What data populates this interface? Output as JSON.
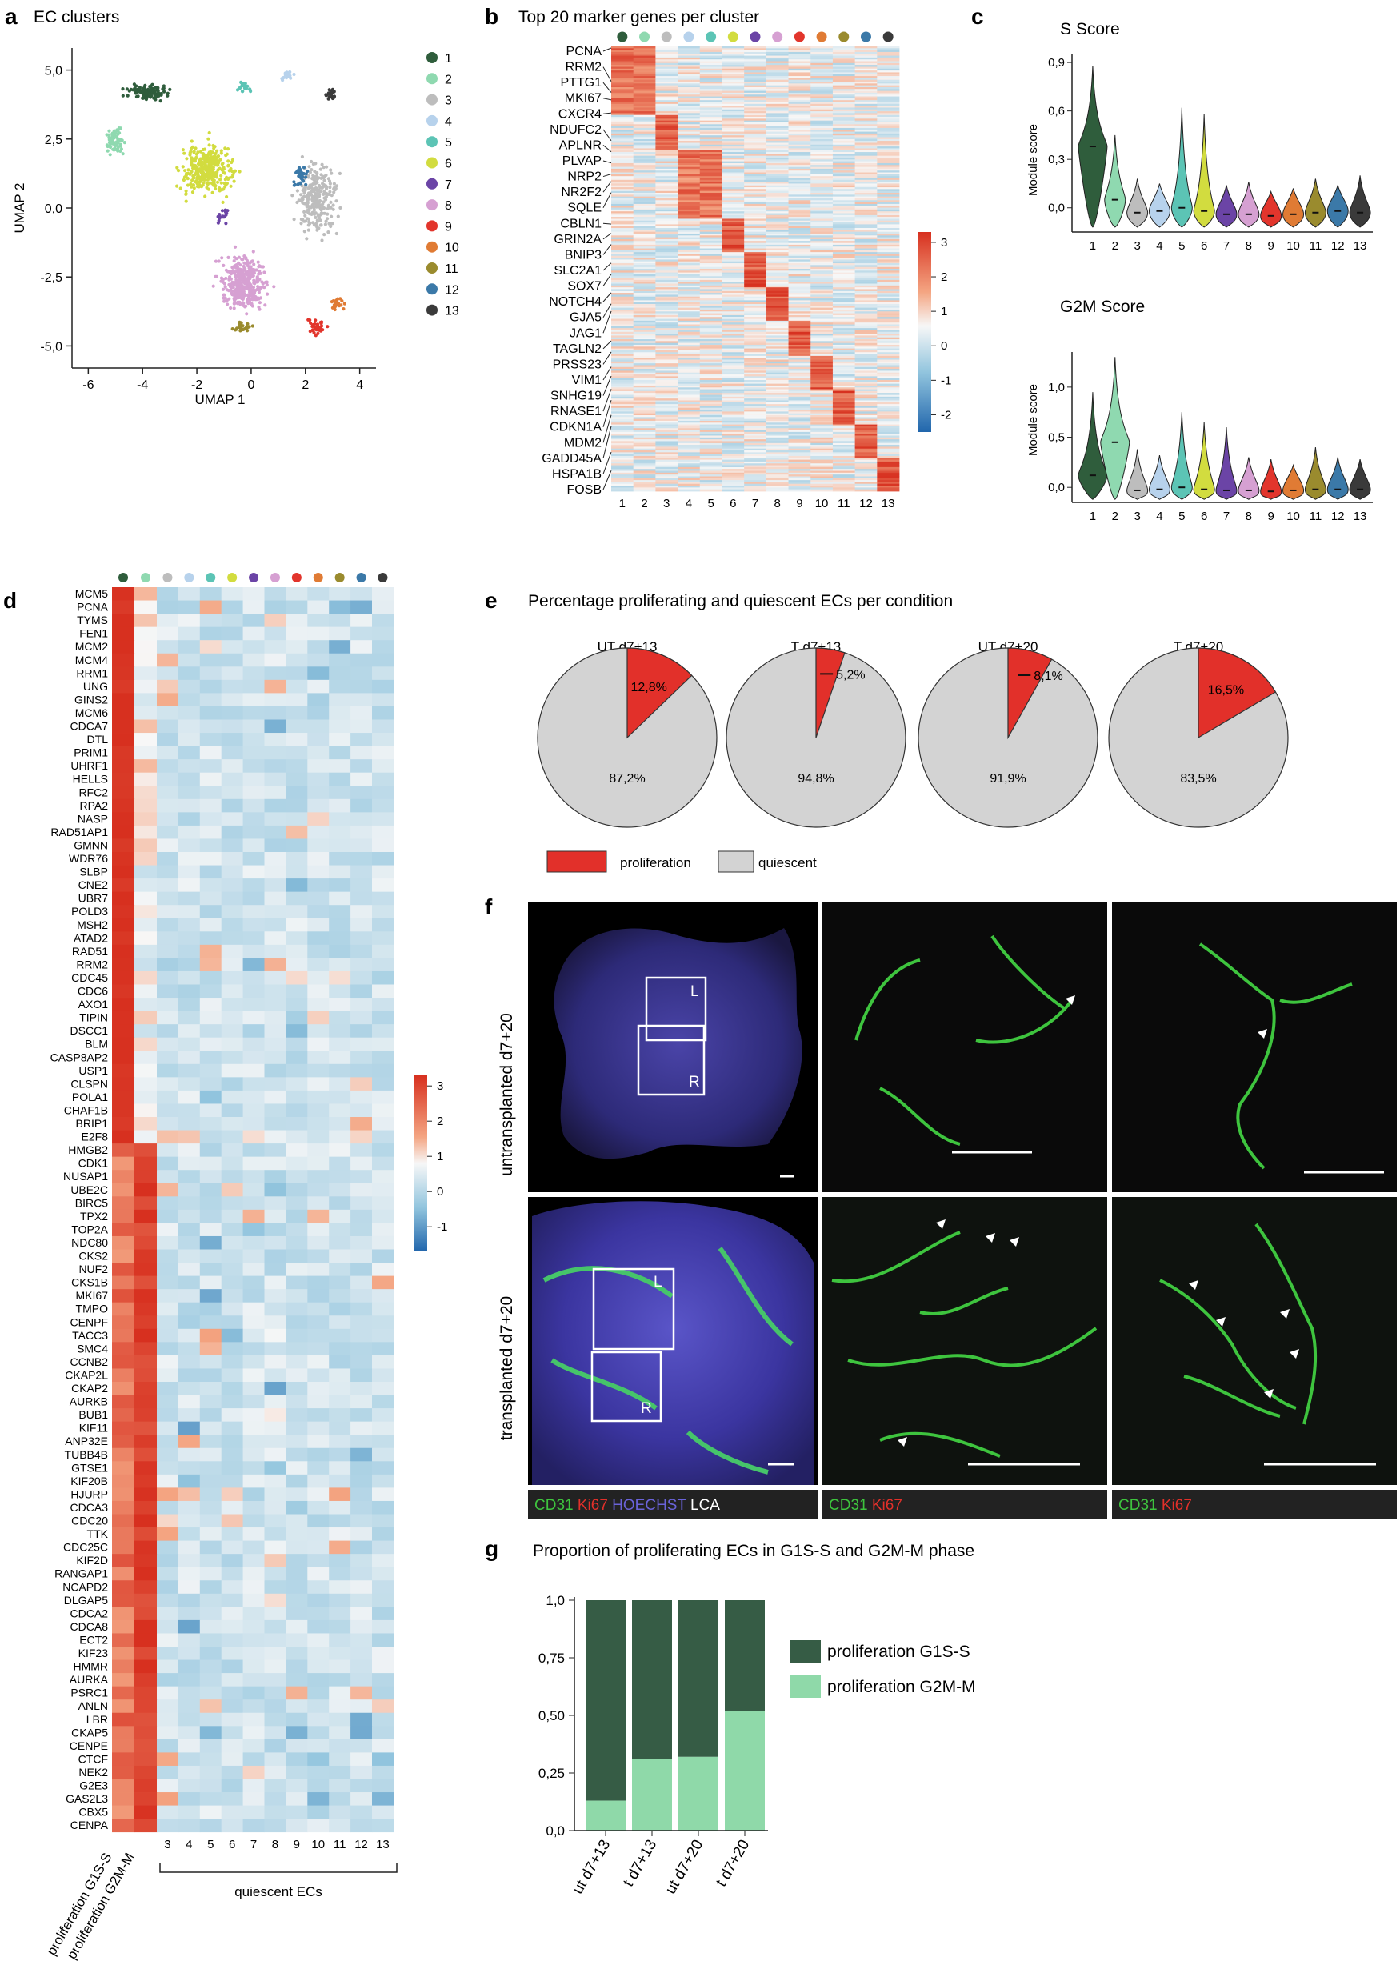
{
  "panels": {
    "a": {
      "letter": "a",
      "title": "EC clusters",
      "xlabel": "UMAP 1",
      "ylabel": "UMAP 2",
      "xticks": [
        "-6",
        "-4",
        "-2",
        "0",
        "2",
        "4"
      ],
      "yticks": [
        "5,0",
        "2,5",
        "0,0",
        "-2,5",
        "-5,0"
      ],
      "legend": [
        "1",
        "2",
        "3",
        "4",
        "5",
        "6",
        "7",
        "8",
        "9",
        "10",
        "11",
        "12",
        "13"
      ]
    },
    "b": {
      "letter": "b",
      "title": "Top 20 marker genes per cluster",
      "genes": [
        "PCNA",
        "RRM2",
        "PTTG1",
        "MKI67",
        "CXCR4",
        "NDUFC2",
        "APLNR",
        "PLVAP",
        "NRP2",
        "NR2F2",
        "SQLE",
        "CBLN1",
        "GRIN2A",
        "BNIP3",
        "SLC2A1",
        "SOX7",
        "NOTCH4",
        "GJA5",
        "JAG1",
        "TAGLN2",
        "PRSS23",
        "VIM1",
        "SNHG19",
        "RNASE1",
        "CDKN1A",
        "MDM2",
        "GADD45A",
        "HSPA1B",
        "FOSB"
      ],
      "xticks": [
        "1",
        "2",
        "3",
        "4",
        "5",
        "6",
        "7",
        "8",
        "9",
        "10",
        "11",
        "12",
        "13"
      ],
      "colorbar": [
        "3",
        "2",
        "1",
        "0",
        "-1",
        "-2"
      ]
    },
    "c": {
      "letter": "c",
      "s_title": "S Score",
      "g2m_title": "G2M Score",
      "ylabel": "Module score",
      "s_yticks": [
        "0,9",
        "0,6",
        "0,3",
        "0,0"
      ],
      "g2m_yticks": [
        "1,0",
        "0,5",
        "0,0"
      ],
      "xticks": [
        "1",
        "2",
        "3",
        "4",
        "5",
        "6",
        "7",
        "8",
        "9",
        "10",
        "11",
        "12",
        "13"
      ]
    },
    "d": {
      "letter": "d",
      "genes": [
        "MCM5",
        "PCNA",
        "TYMS",
        "FEN1",
        "MCM2",
        "MCM4",
        "RRM1",
        "UNG",
        "GINS2",
        "MCM6",
        "CDCA7",
        "DTL",
        "PRIM1",
        "UHRF1",
        "HELLS",
        "RFC2",
        "RPA2",
        "NASP",
        "RAD51AP1",
        "GMNN",
        "WDR76",
        "SLBP",
        "CNE2",
        "UBR7",
        "POLD3",
        "MSH2",
        "ATAD2",
        "RAD51",
        "RRM2",
        "CDC45",
        "CDC6",
        "AXO1",
        "TIPIN",
        "DSCC1",
        "BLM",
        "CASP8AP2",
        "USP1",
        "CLSPN",
        "POLA1",
        "CHAF1B",
        "BRIP1",
        "E2F8",
        "HMGB2",
        "CDK1",
        "NUSAP1",
        "UBE2C",
        "BIRC5",
        "TPX2",
        "TOP2A",
        "NDC80",
        "CKS2",
        "NUF2",
        "CKS1B",
        "MKI67",
        "TMPO",
        "CENPF",
        "TACC3",
        "SMC4",
        "CCNB2",
        "CKAP2L",
        "CKAP2",
        "AURKB",
        "BUB1",
        "KIF11",
        "ANP32E",
        "TUBB4B",
        "GTSE1",
        "KIF20B",
        "HJURP",
        "CDCA3",
        "CDC20",
        "TTK",
        "CDC25C",
        "KIF2D",
        "RANGAP1",
        "NCAPD2",
        "DLGAP5",
        "CDCA2",
        "CDCA8",
        "ECT2",
        "KIF23",
        "HMMR",
        "AURKA",
        "PSRC1",
        "ANLN",
        "LBR",
        "CKAP5",
        "CENPE",
        "CTCF",
        "NEK2",
        "G2E3",
        "GAS2L3",
        "CBX5",
        "CENPA"
      ],
      "col1": "proliferation G1S-S",
      "col2": "proliferation G2M-M",
      "xticks": [
        "3",
        "4",
        "5",
        "6",
        "7",
        "8",
        "9",
        "10",
        "11",
        "12",
        "13"
      ],
      "bracket": "quiescent ECs",
      "colorbar": [
        "3",
        "2",
        "1",
        "0",
        "-1"
      ]
    },
    "e": {
      "letter": "e",
      "title": "Percentage proliferating and quiescent ECs per condition",
      "pies": [
        {
          "cond": "UT d7+13",
          "prolif": "12,8%",
          "quies": "87,2%"
        },
        {
          "cond": "T d7+13",
          "prolif": "5,2%",
          "quies": "94,8%"
        },
        {
          "cond": "UT d7+20",
          "prolif": "8,1%",
          "quies": "91,9%"
        },
        {
          "cond": "T d7+20",
          "prolif": "16,5%",
          "quies": "83,5%"
        }
      ],
      "legend_prolif": "proliferation",
      "legend_quies": "quiescent"
    },
    "f": {
      "letter": "f",
      "row1": "untransplanted d7+20",
      "row2": "transplanted d7+20",
      "boxL": "L",
      "boxR": "R",
      "bar1": {
        "cd31": "CD31",
        "ki67": "Ki67",
        "hoechst": "HOECHST",
        "lca": "LCA"
      },
      "bar2": {
        "cd31": "CD31",
        "ki67": "Ki67"
      },
      "bar3": {
        "cd31": "CD31",
        "ki67": "Ki67"
      }
    },
    "g": {
      "letter": "g",
      "title": "Proportion of proliferating ECs in G1S-S and G2M-M phase",
      "yticks": [
        "1,0",
        "0,75",
        "0,50",
        "0,25",
        "0,0"
      ],
      "legend_g1s": "proliferation G1S-S",
      "legend_g2m": "proliferation G2M-M"
    }
  },
  "colors": {
    "clusters": [
      "#2f5d3c",
      "#8fd9b0",
      "#bdbdbd",
      "#b7d2ec",
      "#5cc4b5",
      "#d2dc3f",
      "#6b44a6",
      "#d6a0d2",
      "#e2352c",
      "#e07b34",
      "#9a8b2e",
      "#3b79a8",
      "#3a3a3a"
    ],
    "prolif": "#e2302a",
    "quies": "#d3d3d3",
    "g1s": "#365c45",
    "g2m": "#8fd9a9",
    "heat_high": "#d7301f",
    "heat_low": "#3a7fc0"
  },
  "chart_data": [
    {
      "type": "pie",
      "title": "UT d7+13",
      "categories": [
        "proliferation",
        "quiescent"
      ],
      "values": [
        12.8,
        87.2
      ]
    },
    {
      "type": "pie",
      "title": "T d7+13",
      "categories": [
        "proliferation",
        "quiescent"
      ],
      "values": [
        5.2,
        94.8
      ]
    },
    {
      "type": "pie",
      "title": "UT d7+20",
      "categories": [
        "proliferation",
        "quiescent"
      ],
      "values": [
        8.1,
        91.9
      ]
    },
    {
      "type": "pie",
      "title": "T d7+20",
      "categories": [
        "proliferation",
        "quiescent"
      ],
      "values": [
        16.5,
        83.5
      ]
    },
    {
      "type": "bar",
      "title": "Proportion of proliferating ECs in G1S-S and G2M-M phase",
      "categories": [
        "ut d7+13",
        "t d7+13",
        "ut d7+20",
        "t d7+20"
      ],
      "series": [
        {
          "name": "proliferation G2M-M",
          "values": [
            0.13,
            0.31,
            0.32,
            0.52
          ]
        },
        {
          "name": "proliferation G1S-S",
          "values": [
            0.87,
            0.69,
            0.68,
            0.48
          ]
        }
      ],
      "ylim": [
        0,
        1.0
      ],
      "stacked": true
    },
    {
      "type": "scatter",
      "title": "EC clusters",
      "xlabel": "UMAP 1",
      "ylabel": "UMAP 2",
      "xlim": [
        -6,
        4
      ],
      "ylim": [
        -5,
        5
      ],
      "series": [
        {
          "name": "1",
          "center": [
            -3.8,
            4.2
          ]
        },
        {
          "name": "2",
          "center": [
            -5.0,
            2.4
          ]
        },
        {
          "name": "3",
          "center": [
            2.4,
            0.3
          ]
        },
        {
          "name": "4",
          "center": [
            1.3,
            4.8
          ]
        },
        {
          "name": "5",
          "center": [
            -0.2,
            4.4
          ]
        },
        {
          "name": "6",
          "center": [
            -1.6,
            1.4
          ]
        },
        {
          "name": "7",
          "center": [
            -1.0,
            -0.3
          ]
        },
        {
          "name": "8",
          "center": [
            -0.3,
            -2.7
          ]
        },
        {
          "name": "9",
          "center": [
            2.4,
            -4.3
          ]
        },
        {
          "name": "10",
          "center": [
            3.2,
            -3.5
          ]
        },
        {
          "name": "11",
          "center": [
            -0.3,
            -4.3
          ]
        },
        {
          "name": "12",
          "center": [
            1.8,
            1.2
          ]
        },
        {
          "name": "13",
          "center": [
            2.9,
            4.1
          ]
        }
      ]
    },
    {
      "type": "violin",
      "title": "S Score",
      "ylabel": "Module score",
      "categories": [
        "1",
        "2",
        "3",
        "4",
        "5",
        "6",
        "7",
        "8",
        "9",
        "10",
        "11",
        "12",
        "13"
      ],
      "medians": [
        0.38,
        0.05,
        -0.03,
        -0.02,
        0.0,
        -0.02,
        -0.04,
        -0.04,
        -0.05,
        -0.04,
        -0.03,
        -0.02,
        -0.03
      ],
      "ylim": [
        -0.15,
        0.95
      ]
    },
    {
      "type": "violin",
      "title": "G2M Score",
      "ylabel": "Module score",
      "categories": [
        "1",
        "2",
        "3",
        "4",
        "5",
        "6",
        "7",
        "8",
        "9",
        "10",
        "11",
        "12",
        "13"
      ],
      "medians": [
        0.12,
        0.45,
        -0.03,
        -0.02,
        0.0,
        -0.02,
        -0.03,
        -0.03,
        -0.04,
        -0.03,
        -0.02,
        -0.02,
        -0.02
      ],
      "ylim": [
        -0.15,
        1.35
      ]
    }
  ]
}
